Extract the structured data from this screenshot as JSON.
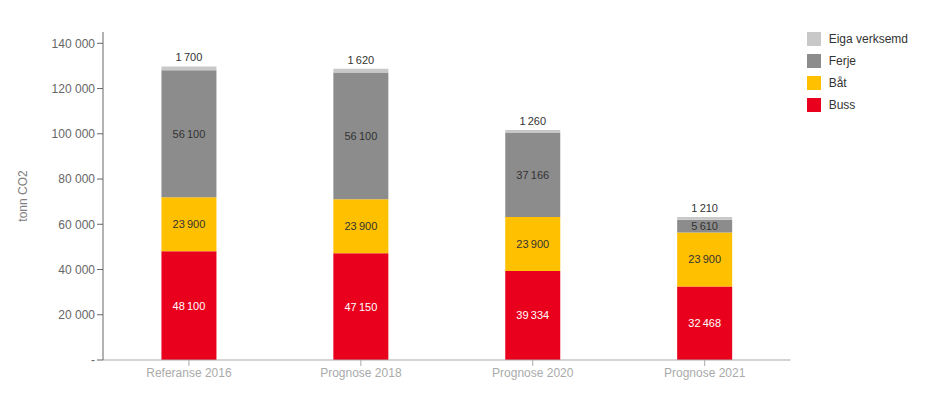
{
  "chart_data": {
    "type": "bar",
    "stacked": true,
    "data_labels": true,
    "legend": "right",
    "grid": false,
    "categories": [
      "Referanse 2016",
      "Prognose 2018",
      "Prognose 2020",
      "Prognose 2021"
    ],
    "ylabel": "tonn CO2",
    "ylim": [
      0,
      145000
    ],
    "yticks": [
      {
        "value": 0,
        "label": "-"
      },
      {
        "value": 20000,
        "label": "20 000"
      },
      {
        "value": 40000,
        "label": "40 000"
      },
      {
        "value": 60000,
        "label": "60 000"
      },
      {
        "value": 80000,
        "label": "80 000"
      },
      {
        "value": 100000,
        "label": "100 000"
      },
      {
        "value": 120000,
        "label": "120 000"
      },
      {
        "value": 140000,
        "label": "140 000"
      }
    ],
    "series": [
      {
        "name": "Buss",
        "color": "#e8001c",
        "values": [
          48100,
          47150,
          39334,
          32468
        ],
        "value_labels": [
          "48 100",
          "47 150",
          "39 334",
          "32 468"
        ]
      },
      {
        "name": "Båt",
        "color": "#ffc000",
        "values": [
          23900,
          23900,
          23900,
          23900
        ],
        "value_labels": [
          "23 900",
          "23 900",
          "23 900",
          "23 900"
        ]
      },
      {
        "name": "Ferje",
        "color": "#8c8c8c",
        "values": [
          56100,
          56100,
          37166,
          5610
        ],
        "value_labels": [
          "56 100",
          "56 100",
          "37 166",
          "5 610"
        ]
      },
      {
        "name": "Eiga verksemd",
        "color": "#c8c8c8",
        "values": [
          1700,
          1620,
          1260,
          1210
        ],
        "value_labels": [
          "1 700",
          "1 620",
          "1 260",
          "1 210"
        ]
      }
    ]
  }
}
